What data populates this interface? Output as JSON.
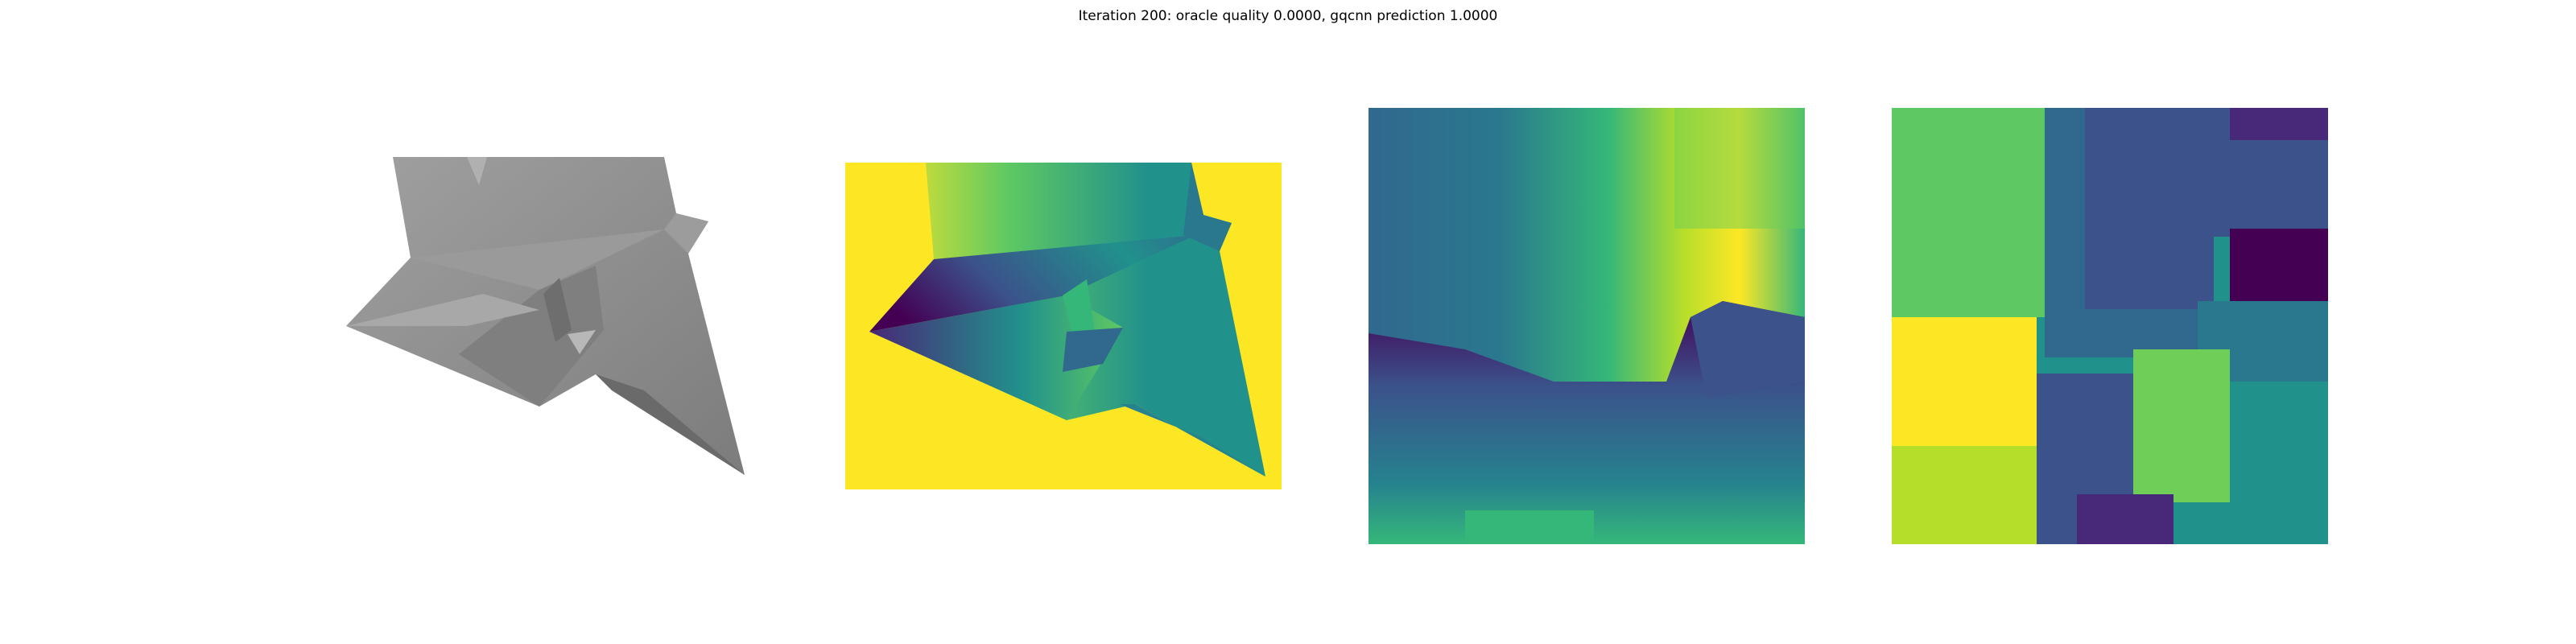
{
  "figure": {
    "title": "Iteration 200: oracle quality 0.0000, gqcnn prediction 1.0000"
  },
  "panels": [
    {
      "name": "rendered-mesh-panel",
      "icon": "gray-shaded-3d-object"
    },
    {
      "name": "depth-image-panel",
      "colormap": "viridis"
    },
    {
      "name": "grasp-depth-crop-panel",
      "colormap": "viridis"
    },
    {
      "name": "gradient-crop-panel",
      "colormap": "viridis"
    }
  ],
  "colors": {
    "viridis_dark": "#440154",
    "viridis_purple": "#3b528b",
    "viridis_teal": "#21918c",
    "viridis_green": "#5ec962",
    "viridis_yellow": "#fde725",
    "mesh_gray": "#8c8c8c"
  }
}
